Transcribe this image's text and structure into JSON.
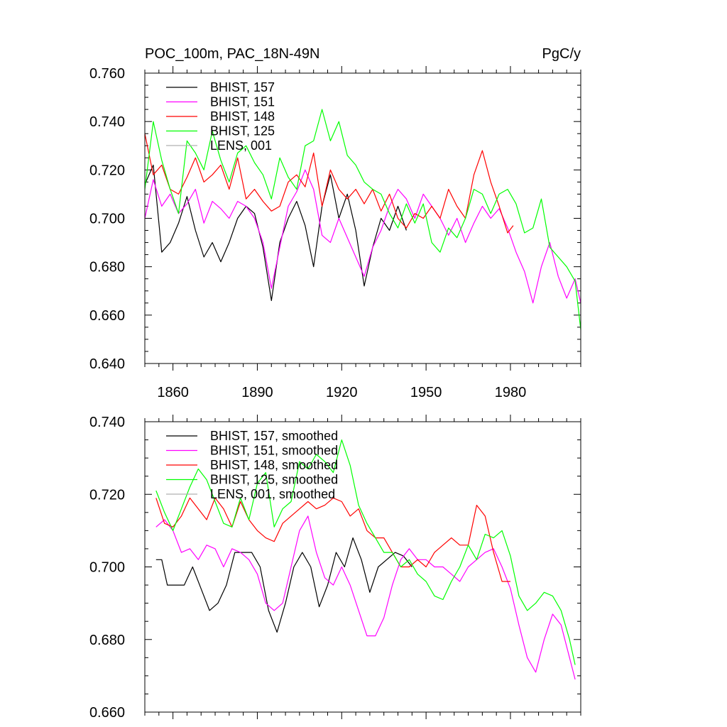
{
  "chart_data": [
    {
      "type": "line",
      "title": "POC_100m, PAC_18N-49N",
      "units": "PgC/y",
      "xlim": [
        1850,
        2005
      ],
      "ylim": [
        0.64,
        0.76
      ],
      "xticks": [
        1860,
        1890,
        1920,
        1950,
        1980
      ],
      "xtick_labels": [
        "1860",
        "1890",
        "1920",
        "1950",
        "1980"
      ],
      "yticks": [
        0.64,
        0.66,
        0.68,
        0.7,
        0.72,
        0.74,
        0.76
      ],
      "ytick_labels": [
        "0.640",
        "0.660",
        "0.680",
        "0.700",
        "0.720",
        "0.740",
        "0.760"
      ],
      "legend_position": "top-left",
      "series": [
        {
          "name": "BHIST, 157",
          "color": "#000000",
          "x": [
            1850,
            1853,
            1856,
            1859,
            1862,
            1865,
            1868,
            1871,
            1874,
            1877,
            1880,
            1883,
            1886,
            1889,
            1892,
            1895,
            1898,
            1901,
            1904,
            1907,
            1910,
            1913,
            1916,
            1919,
            1922,
            1925,
            1928,
            1931,
            1934,
            1937,
            1940,
            1943
          ],
          "y": [
            0.714,
            0.722,
            0.686,
            0.69,
            0.698,
            0.709,
            0.695,
            0.684,
            0.69,
            0.682,
            0.69,
            0.7,
            0.705,
            0.702,
            0.688,
            0.666,
            0.69,
            0.7,
            0.707,
            0.697,
            0.68,
            0.705,
            0.718,
            0.7,
            0.71,
            0.695,
            0.672,
            0.688,
            0.7,
            0.695,
            0.705,
            0.695
          ]
        },
        {
          "name": "BHIST, 151",
          "color": "#ff00ff",
          "x": [
            1850,
            1853,
            1856,
            1859,
            1862,
            1865,
            1868,
            1871,
            1874,
            1877,
            1880,
            1883,
            1886,
            1889,
            1892,
            1895,
            1898,
            1901,
            1904,
            1907,
            1910,
            1913,
            1916,
            1919,
            1922,
            1925,
            1928,
            1931,
            1934,
            1937,
            1940,
            1943,
            1946,
            1949,
            1952,
            1955,
            1958,
            1961,
            1964,
            1967,
            1970,
            1973,
            1976,
            1979,
            1982,
            1985,
            1988,
            1991,
            1994,
            1997,
            2000,
            2003,
            2005
          ],
          "y": [
            0.7,
            0.716,
            0.705,
            0.71,
            0.702,
            0.706,
            0.712,
            0.698,
            0.707,
            0.704,
            0.7,
            0.707,
            0.705,
            0.7,
            0.69,
            0.671,
            0.688,
            0.705,
            0.711,
            0.72,
            0.712,
            0.693,
            0.69,
            0.7,
            0.692,
            0.684,
            0.676,
            0.688,
            0.695,
            0.705,
            0.712,
            0.708,
            0.7,
            0.71,
            0.705,
            0.7,
            0.693,
            0.7,
            0.69,
            0.698,
            0.705,
            0.7,
            0.704,
            0.696,
            0.686,
            0.678,
            0.665,
            0.68,
            0.69,
            0.676,
            0.667,
            0.675,
            0.665
          ]
        },
        {
          "name": "BHIST, 148",
          "color": "#ff0000",
          "x": [
            1850,
            1853,
            1856,
            1859,
            1862,
            1865,
            1868,
            1871,
            1874,
            1877,
            1880,
            1883,
            1886,
            1889,
            1892,
            1895,
            1898,
            1901,
            1904,
            1907,
            1910,
            1913,
            1916,
            1919,
            1922,
            1925,
            1928,
            1931,
            1934,
            1937,
            1940,
            1943,
            1946,
            1949,
            1952,
            1955,
            1958,
            1961,
            1964,
            1967,
            1970,
            1973,
            1976,
            1979,
            1981
          ],
          "y": [
            0.735,
            0.718,
            0.722,
            0.712,
            0.71,
            0.717,
            0.725,
            0.715,
            0.718,
            0.722,
            0.712,
            0.725,
            0.708,
            0.712,
            0.707,
            0.703,
            0.705,
            0.715,
            0.718,
            0.713,
            0.727,
            0.705,
            0.72,
            0.712,
            0.708,
            0.712,
            0.706,
            0.712,
            0.703,
            0.71,
            0.7,
            0.696,
            0.702,
            0.7,
            0.705,
            0.7,
            0.712,
            0.705,
            0.7,
            0.718,
            0.728,
            0.715,
            0.705,
            0.694,
            0.697
          ]
        },
        {
          "name": "BHIST, 125",
          "color": "#00ff00",
          "x": [
            1850,
            1853,
            1856,
            1859,
            1862,
            1865,
            1868,
            1871,
            1874,
            1877,
            1880,
            1883,
            1886,
            1889,
            1892,
            1895,
            1898,
            1901,
            1904,
            1907,
            1910,
            1913,
            1916,
            1919,
            1922,
            1925,
            1928,
            1931,
            1934,
            1937,
            1940,
            1943,
            1946,
            1949,
            1952,
            1955,
            1958,
            1961,
            1964,
            1967,
            1970,
            1973,
            1976,
            1979,
            1982,
            1985,
            1988,
            1991,
            1994,
            1997,
            2000,
            2003,
            2005
          ],
          "y": [
            0.712,
            0.74,
            0.724,
            0.712,
            0.702,
            0.732,
            0.727,
            0.72,
            0.736,
            0.724,
            0.715,
            0.727,
            0.73,
            0.723,
            0.718,
            0.708,
            0.725,
            0.717,
            0.712,
            0.73,
            0.732,
            0.745,
            0.732,
            0.74,
            0.726,
            0.722,
            0.715,
            0.712,
            0.71,
            0.702,
            0.696,
            0.706,
            0.698,
            0.706,
            0.69,
            0.686,
            0.696,
            0.692,
            0.7,
            0.712,
            0.71,
            0.702,
            0.71,
            0.712,
            0.706,
            0.694,
            0.696,
            0.708,
            0.688,
            0.684,
            0.68,
            0.674,
            0.654
          ]
        },
        {
          "name": "LENS, 001",
          "color": "#b0b0b0",
          "x": [],
          "y": []
        }
      ]
    },
    {
      "type": "line",
      "title": "",
      "xlim": [
        1850,
        2005
      ],
      "ylim": [
        0.66,
        0.74
      ],
      "xticks": [
        1860,
        1890,
        1920,
        1950,
        1980
      ],
      "yticks": [
        0.66,
        0.68,
        0.7,
        0.72,
        0.74
      ],
      "ytick_labels": [
        "0.660",
        "0.680",
        "0.700",
        "0.720",
        "0.740"
      ],
      "legend_position": "top-left",
      "series": [
        {
          "name": "BHIST, 157, smoothed",
          "color": "#000000",
          "x": [
            1854,
            1856,
            1858,
            1861,
            1864,
            1867,
            1870,
            1873,
            1876,
            1879,
            1882,
            1885,
            1888,
            1891,
            1894,
            1897,
            1900,
            1903,
            1906,
            1909,
            1912,
            1915,
            1918,
            1921,
            1924,
            1927,
            1930,
            1933,
            1936,
            1939,
            1942,
            1945
          ],
          "y": [
            0.702,
            0.702,
            0.695,
            0.695,
            0.695,
            0.7,
            0.694,
            0.688,
            0.69,
            0.695,
            0.704,
            0.704,
            0.704,
            0.7,
            0.688,
            0.682,
            0.69,
            0.7,
            0.704,
            0.7,
            0.689,
            0.695,
            0.704,
            0.7,
            0.708,
            0.702,
            0.693,
            0.7,
            0.702,
            0.704,
            0.703,
            0.7
          ]
        },
        {
          "name": "BHIST, 151, smoothed",
          "color": "#ff00ff",
          "x": [
            1854,
            1857,
            1860,
            1863,
            1866,
            1869,
            1872,
            1875,
            1878,
            1881,
            1884,
            1887,
            1890,
            1893,
            1896,
            1899,
            1902,
            1905,
            1908,
            1911,
            1914,
            1917,
            1920,
            1923,
            1926,
            1929,
            1932,
            1935,
            1938,
            1941,
            1944,
            1947,
            1950,
            1953,
            1956,
            1959,
            1962,
            1965,
            1968,
            1971,
            1974,
            1977,
            1980,
            1983,
            1986,
            1989,
            1992,
            1995,
            1998,
            2001,
            2003
          ],
          "y": [
            0.711,
            0.713,
            0.71,
            0.704,
            0.705,
            0.702,
            0.706,
            0.705,
            0.7,
            0.705,
            0.704,
            0.702,
            0.698,
            0.69,
            0.688,
            0.69,
            0.7,
            0.71,
            0.714,
            0.704,
            0.697,
            0.695,
            0.7,
            0.695,
            0.688,
            0.681,
            0.681,
            0.686,
            0.695,
            0.702,
            0.705,
            0.702,
            0.702,
            0.7,
            0.7,
            0.698,
            0.696,
            0.7,
            0.702,
            0.704,
            0.705,
            0.7,
            0.694,
            0.684,
            0.675,
            0.671,
            0.68,
            0.687,
            0.684,
            0.675,
            0.669
          ]
        },
        {
          "name": "BHIST, 148, smoothed",
          "color": "#ff0000",
          "x": [
            1854,
            1857,
            1860,
            1863,
            1866,
            1869,
            1872,
            1875,
            1878,
            1881,
            1884,
            1887,
            1890,
            1893,
            1896,
            1899,
            1902,
            1905,
            1908,
            1911,
            1914,
            1917,
            1920,
            1923,
            1926,
            1929,
            1932,
            1935,
            1938,
            1941,
            1944,
            1947,
            1950,
            1953,
            1956,
            1959,
            1962,
            1965,
            1968,
            1971,
            1974,
            1977,
            1980
          ],
          "y": [
            0.719,
            0.712,
            0.711,
            0.714,
            0.719,
            0.716,
            0.713,
            0.719,
            0.716,
            0.711,
            0.718,
            0.713,
            0.71,
            0.708,
            0.707,
            0.712,
            0.714,
            0.716,
            0.718,
            0.716,
            0.717,
            0.719,
            0.718,
            0.714,
            0.716,
            0.71,
            0.708,
            0.708,
            0.704,
            0.7,
            0.7,
            0.702,
            0.7,
            0.704,
            0.706,
            0.708,
            0.706,
            0.706,
            0.717,
            0.714,
            0.704,
            0.696,
            0.696
          ]
        },
        {
          "name": "BHIST, 125, smoothed",
          "color": "#00ff00",
          "x": [
            1854,
            1857,
            1860,
            1863,
            1866,
            1869,
            1872,
            1875,
            1878,
            1881,
            1884,
            1887,
            1890,
            1893,
            1896,
            1899,
            1902,
            1905,
            1908,
            1911,
            1914,
            1917,
            1920,
            1923,
            1926,
            1929,
            1932,
            1935,
            1938,
            1941,
            1944,
            1947,
            1950,
            1953,
            1956,
            1959,
            1962,
            1965,
            1968,
            1971,
            1974,
            1977,
            1980,
            1983,
            1986,
            1989,
            1992,
            1995,
            1998,
            2001,
            2003
          ],
          "y": [
            0.721,
            0.715,
            0.71,
            0.716,
            0.722,
            0.727,
            0.724,
            0.718,
            0.712,
            0.711,
            0.719,
            0.713,
            0.723,
            0.726,
            0.711,
            0.716,
            0.718,
            0.729,
            0.727,
            0.731,
            0.729,
            0.726,
            0.735,
            0.728,
            0.717,
            0.712,
            0.708,
            0.704,
            0.704,
            0.7,
            0.702,
            0.698,
            0.696,
            0.692,
            0.691,
            0.696,
            0.7,
            0.706,
            0.702,
            0.709,
            0.708,
            0.71,
            0.703,
            0.692,
            0.688,
            0.69,
            0.693,
            0.692,
            0.688,
            0.68,
            0.673
          ]
        },
        {
          "name": "LENS, 001, smoothed",
          "color": "#b0b0b0",
          "x": [],
          "y": []
        }
      ]
    }
  ]
}
